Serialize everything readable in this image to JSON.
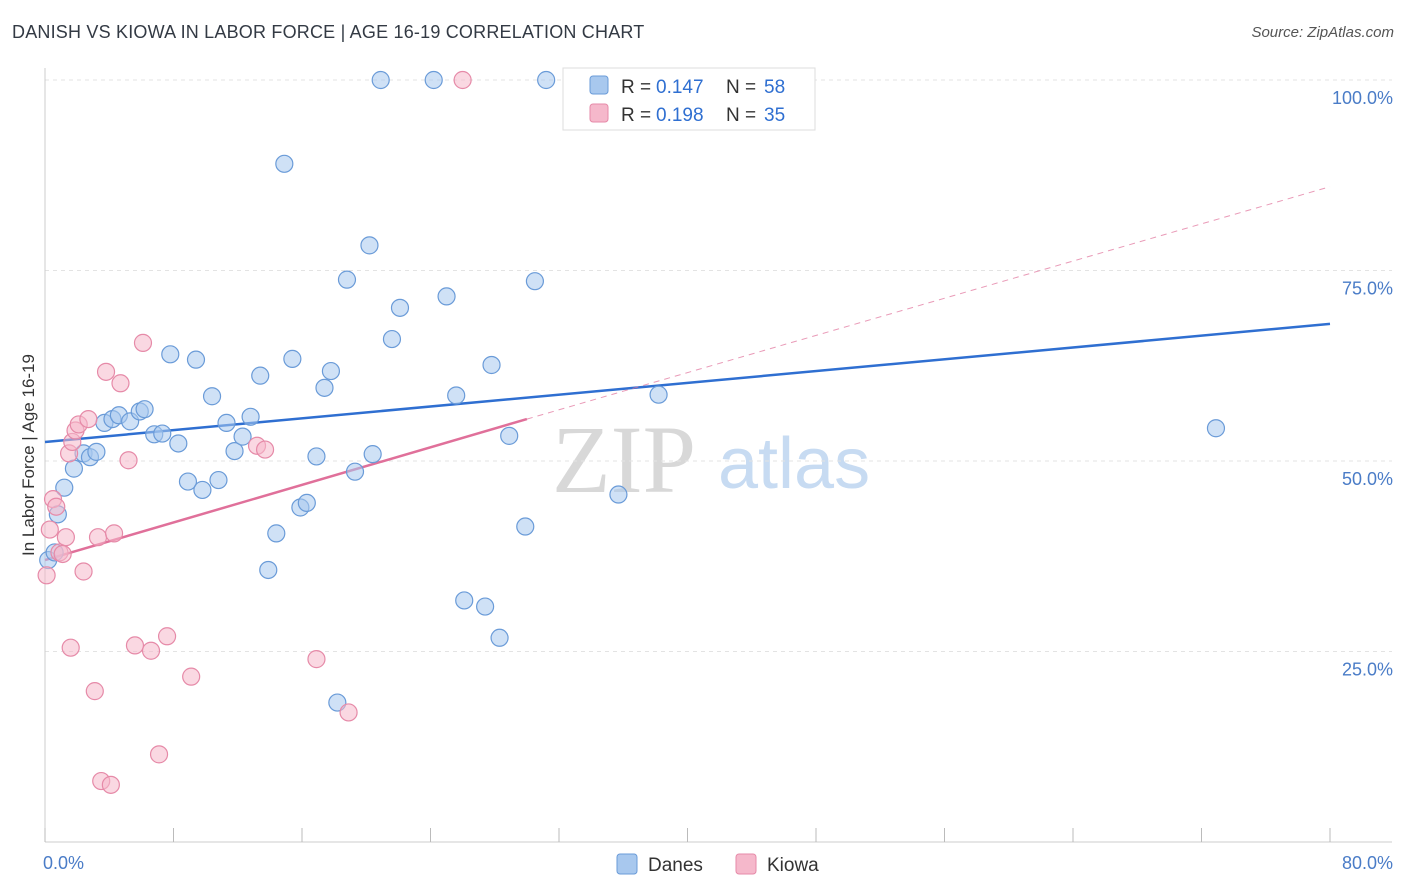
{
  "header": {
    "title": "DANISH VS KIOWA IN LABOR FORCE | AGE 16-19 CORRELATION CHART",
    "source": "Source: ZipAtlas.com"
  },
  "watermark": {
    "zip": "ZIP",
    "atlas": "atlas"
  },
  "colors": {
    "danes_fill": "#a8c8ee",
    "danes_stroke": "#6a9bd8",
    "danes_line": "#2f6fd1",
    "kiowa_fill": "#f5b8cb",
    "kiowa_stroke": "#e68aa8",
    "kiowa_line": "#e0709a",
    "tick": "#4a7cc7"
  },
  "chart_data": {
    "type": "scatter",
    "title": "DANISH VS KIOWA IN LABOR FORCE | AGE 16-19 CORRELATION CHART",
    "xlabel": "",
    "ylabel": "In Labor Force | Age 16-19",
    "xlim": [
      0,
      80
    ],
    "ylim": [
      0,
      100
    ],
    "x_tick_labels": [
      "0.0%",
      "80.0%"
    ],
    "y_ticks": [
      25,
      50,
      75,
      100
    ],
    "y_tick_labels": [
      "25.0%",
      "50.0%",
      "75.0%",
      "100.0%"
    ],
    "legend": {
      "entries": [
        {
          "name": "Danes",
          "r_label": "R =",
          "r": "0.147",
          "n_label": "N =",
          "n": "58"
        },
        {
          "name": "Kiowa",
          "r_label": "R =",
          "r": "0.198",
          "n_label": "N =",
          "n": "35"
        }
      ]
    },
    "series": [
      {
        "name": "Danes",
        "trend": {
          "x0": 0,
          "y0": 52.5,
          "x1": 80,
          "y1": 68
        },
        "points": [
          [
            0.2,
            37
          ],
          [
            0.6,
            38
          ],
          [
            0.8,
            43
          ],
          [
            1.2,
            46.5
          ],
          [
            1.8,
            49
          ],
          [
            2.4,
            51
          ],
          [
            2.8,
            50.5
          ],
          [
            3.2,
            51.2
          ],
          [
            3.7,
            55
          ],
          [
            4.2,
            55.5
          ],
          [
            4.6,
            56
          ],
          [
            5.3,
            55.2
          ],
          [
            5.9,
            56.5
          ],
          [
            6.2,
            56.8
          ],
          [
            6.8,
            53.5
          ],
          [
            7.3,
            53.6
          ],
          [
            7.8,
            64
          ],
          [
            8.3,
            52.3
          ],
          [
            8.9,
            47.3
          ],
          [
            9.4,
            63.3
          ],
          [
            9.8,
            46.2
          ],
          [
            10.4,
            58.5
          ],
          [
            10.8,
            47.5
          ],
          [
            11.3,
            55
          ],
          [
            11.8,
            51.3
          ],
          [
            12.3,
            53.2
          ],
          [
            12.8,
            55.8
          ],
          [
            13.4,
            61.2
          ],
          [
            13.9,
            35.7
          ],
          [
            14.4,
            40.5
          ],
          [
            14.9,
            89
          ],
          [
            15.4,
            63.4
          ],
          [
            15.9,
            43.9
          ],
          [
            16.3,
            44.5
          ],
          [
            16.9,
            50.6
          ],
          [
            17.4,
            59.6
          ],
          [
            17.8,
            61.8
          ],
          [
            18.2,
            18.3
          ],
          [
            18.8,
            73.8
          ],
          [
            19.3,
            48.6
          ],
          [
            20.2,
            78.3
          ],
          [
            20.4,
            50.9
          ],
          [
            20.9,
            100
          ],
          [
            21.6,
            66
          ],
          [
            22.1,
            70.1
          ],
          [
            24.2,
            100
          ],
          [
            25,
            71.6
          ],
          [
            25.6,
            58.6
          ],
          [
            26.1,
            31.7
          ],
          [
            27.4,
            30.9
          ],
          [
            27.8,
            62.6
          ],
          [
            28.3,
            26.8
          ],
          [
            28.9,
            53.3
          ],
          [
            29.9,
            41.4
          ],
          [
            30.5,
            73.6
          ],
          [
            31.2,
            100
          ],
          [
            35.7,
            45.6
          ],
          [
            38.2,
            58.7
          ],
          [
            72.9,
            54.3
          ]
        ]
      },
      {
        "name": "Kiowa",
        "trend": {
          "x0": 0,
          "y0": 37,
          "x1": 30,
          "y1": 55.5,
          "dash_x1": 80,
          "dash_y1": 86
        },
        "points": [
          [
            0.1,
            35
          ],
          [
            0.3,
            41
          ],
          [
            0.5,
            45
          ],
          [
            0.7,
            44
          ],
          [
            0.9,
            38
          ],
          [
            1.1,
            37.8
          ],
          [
            1.3,
            40
          ],
          [
            1.5,
            51
          ],
          [
            1.7,
            52.5
          ],
          [
            1.9,
            54
          ],
          [
            2.1,
            54.8
          ],
          [
            2.4,
            35.5
          ],
          [
            2.7,
            55.5
          ],
          [
            1.6,
            25.5
          ],
          [
            3.1,
            19.8
          ],
          [
            3.3,
            40
          ],
          [
            3.5,
            8
          ],
          [
            3.8,
            61.7
          ],
          [
            4.1,
            7.5
          ],
          [
            4.3,
            40.5
          ],
          [
            4.7,
            60.2
          ],
          [
            5.2,
            50.1
          ],
          [
            5.6,
            25.8
          ],
          [
            6.1,
            65.5
          ],
          [
            6.6,
            25.1
          ],
          [
            7.1,
            11.5
          ],
          [
            7.6,
            27
          ],
          [
            9.1,
            21.7
          ],
          [
            13.2,
            52
          ],
          [
            13.7,
            51.5
          ],
          [
            16.9,
            24
          ],
          [
            18.9,
            17
          ],
          [
            26,
            100
          ]
        ]
      }
    ]
  }
}
